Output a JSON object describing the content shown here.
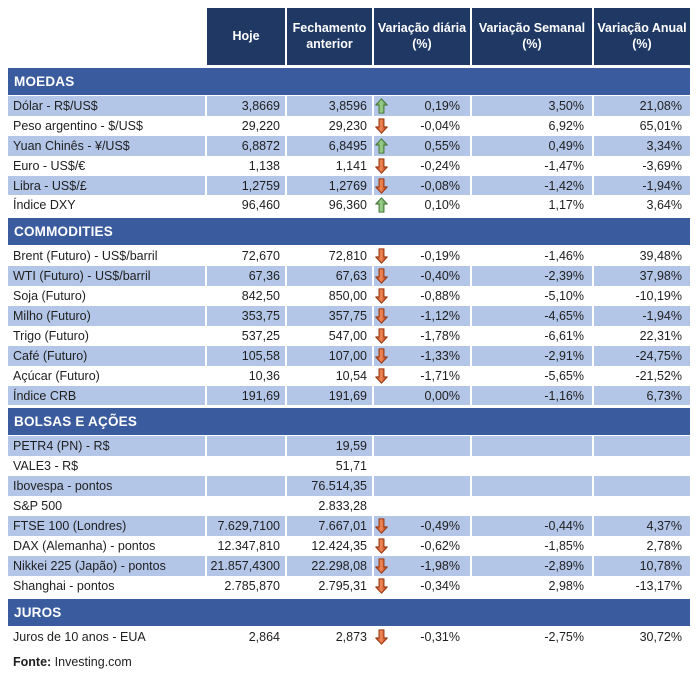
{
  "header": {
    "columns": [
      "Hoje",
      "Fechamento anterior",
      "Variação diária (%)",
      "Variação Semanal (%)",
      "Variação Anual (%)"
    ]
  },
  "sections": [
    {
      "title": "MOEDAS",
      "rows": [
        {
          "label": "Dólar - R$/US$",
          "hoje": "3,8669",
          "fechamento": "3,8596",
          "arrow": "up",
          "diaria": "0,19%",
          "semanal": "3,50%",
          "anual": "21,08%"
        },
        {
          "label": "Peso argentino - $/US$",
          "hoje": "29,220",
          "fechamento": "29,230",
          "arrow": "down",
          "diaria": "-0,04%",
          "semanal": "6,92%",
          "anual": "65,01%"
        },
        {
          "label": "Yuan Chinês - ¥/US$",
          "hoje": "6,8872",
          "fechamento": "6,8495",
          "arrow": "up",
          "diaria": "0,55%",
          "semanal": "0,49%",
          "anual": "3,34%"
        },
        {
          "label": "Euro - US$/€",
          "hoje": "1,138",
          "fechamento": "1,141",
          "arrow": "down",
          "diaria": "-0,24%",
          "semanal": "-1,47%",
          "anual": "-3,69%"
        },
        {
          "label": "Libra - US$/£",
          "hoje": "1,2759",
          "fechamento": "1,2769",
          "arrow": "down",
          "diaria": "-0,08%",
          "semanal": "-1,42%",
          "anual": "-1,94%"
        },
        {
          "label": "Índice DXY",
          "hoje": "96,460",
          "fechamento": "96,360",
          "arrow": "up",
          "diaria": "0,10%",
          "semanal": "1,17%",
          "anual": "3,64%"
        }
      ]
    },
    {
      "title": "COMMODITIES",
      "rows": [
        {
          "label": "Brent (Futuro) - US$/barril",
          "hoje": "72,670",
          "fechamento": "72,810",
          "arrow": "down",
          "diaria": "-0,19%",
          "semanal": "-1,46%",
          "anual": "39,48%"
        },
        {
          "label": "WTI (Futuro) - US$/barril",
          "hoje": "67,36",
          "fechamento": "67,63",
          "arrow": "down",
          "diaria": "-0,40%",
          "semanal": "-2,39%",
          "anual": "37,98%"
        },
        {
          "label": "Soja (Futuro)",
          "hoje": "842,50",
          "fechamento": "850,00",
          "arrow": "down",
          "diaria": "-0,88%",
          "semanal": "-5,10%",
          "anual": "-10,19%"
        },
        {
          "label": "Milho (Futuro)",
          "hoje": "353,75",
          "fechamento": "357,75",
          "arrow": "down",
          "diaria": "-1,12%",
          "semanal": "-4,65%",
          "anual": "-1,94%"
        },
        {
          "label": "Trigo (Futuro)",
          "hoje": "537,25",
          "fechamento": "547,00",
          "arrow": "down",
          "diaria": "-1,78%",
          "semanal": "-6,61%",
          "anual": "22,31%"
        },
        {
          "label": "Café (Futuro)",
          "hoje": "105,58",
          "fechamento": "107,00",
          "arrow": "down",
          "diaria": "-1,33%",
          "semanal": "-2,91%",
          "anual": "-24,75%"
        },
        {
          "label": "Açúcar (Futuro)",
          "hoje": "10,36",
          "fechamento": "10,54",
          "arrow": "down",
          "diaria": "-1,71%",
          "semanal": "-5,65%",
          "anual": "-21,52%"
        },
        {
          "label": "Índice CRB",
          "hoje": "191,69",
          "fechamento": "191,69",
          "arrow": null,
          "diaria": "0,00%",
          "semanal": "-1,16%",
          "anual": "6,73%"
        }
      ]
    },
    {
      "title": "BOLSAS E AÇÕES",
      "rows": [
        {
          "label": "PETR4 (PN) - R$",
          "hoje": "",
          "fechamento": "19,59",
          "arrow": null,
          "diaria": "",
          "semanal": "",
          "anual": ""
        },
        {
          "label": "VALE3 - R$",
          "hoje": "",
          "fechamento": "51,71",
          "arrow": null,
          "diaria": "",
          "semanal": "",
          "anual": ""
        },
        {
          "label": "Ibovespa - pontos",
          "hoje": "",
          "fechamento": "76.514,35",
          "arrow": null,
          "diaria": "",
          "semanal": "",
          "anual": ""
        },
        {
          "label": "S&P 500",
          "hoje": "",
          "fechamento": "2.833,28",
          "arrow": null,
          "diaria": "",
          "semanal": "",
          "anual": ""
        },
        {
          "label": "FTSE 100 (Londres)",
          "hoje": "7.629,7100",
          "fechamento": "7.667,01",
          "arrow": "down",
          "diaria": "-0,49%",
          "semanal": "-0,44%",
          "anual": "4,37%"
        },
        {
          "label": "DAX (Alemanha) - pontos",
          "hoje": "12.347,810",
          "fechamento": "12.424,35",
          "arrow": "down",
          "diaria": "-0,62%",
          "semanal": "-1,85%",
          "anual": "2,78%"
        },
        {
          "label": "Nikkei 225 (Japão) - pontos",
          "hoje": "21.857,4300",
          "fechamento": "22.298,08",
          "arrow": "down",
          "diaria": "-1,98%",
          "semanal": "-2,89%",
          "anual": "10,78%"
        },
        {
          "label": "Shanghai - pontos",
          "hoje": "2.785,870",
          "fechamento": "2.795,31",
          "arrow": "down",
          "diaria": "-0,34%",
          "semanal": "2,98%",
          "anual": "-13,17%"
        }
      ]
    },
    {
      "title": "JUROS",
      "rows": [
        {
          "label": "Juros de 10 anos - EUA",
          "hoje": "2,864",
          "fechamento": "2,873",
          "arrow": "down",
          "diaria": "-0,31%",
          "semanal": "-2,75%",
          "anual": "30,72%"
        }
      ]
    }
  ],
  "footer": {
    "source_label": "Fonte:",
    "source_value": "Investing.com"
  },
  "colors": {
    "header_bg": "#1F3864",
    "section_bg": "#3A5C9E",
    "row_shaded_bg": "#B4C6E7",
    "up_arrow_fill": "#5BA14E",
    "up_arrow_border": "#4C7A41",
    "down_arrow_fill": "#CC4A1D",
    "down_arrow_border": "#993812"
  }
}
